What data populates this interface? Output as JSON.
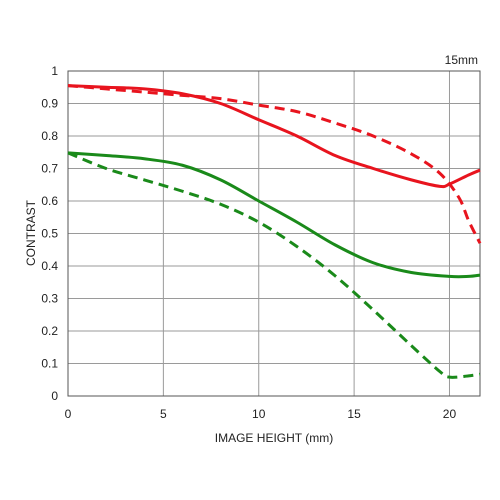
{
  "chart_data": {
    "type": "line",
    "title": "",
    "corner_label": "15mm",
    "xlabel": "IMAGE HEIGHT (mm)",
    "ylabel": "CONTRAST",
    "xlim": [
      0,
      21.6
    ],
    "ylim": [
      0,
      1
    ],
    "x_ticks": [
      0,
      5,
      10,
      15,
      20
    ],
    "y_ticks": [
      0,
      0.1,
      0.2,
      0.3,
      0.4,
      0.5,
      0.6,
      0.7,
      0.8,
      0.9,
      1
    ],
    "grid": true,
    "legend": "none",
    "series": [
      {
        "color": "#e8141e",
        "dash": "solid",
        "points": [
          [
            0,
            0.955
          ],
          [
            2,
            0.95
          ],
          [
            4,
            0.945
          ],
          [
            6,
            0.93
          ],
          [
            8,
            0.9
          ],
          [
            10,
            0.85
          ],
          [
            12,
            0.8
          ],
          [
            14,
            0.74
          ],
          [
            16,
            0.7
          ],
          [
            18,
            0.665
          ],
          [
            19.5,
            0.645
          ],
          [
            20,
            0.652
          ],
          [
            21,
            0.68
          ],
          [
            21.6,
            0.695
          ]
        ]
      },
      {
        "color": "#e8141e",
        "dash": "dashed",
        "points": [
          [
            0,
            0.955
          ],
          [
            2,
            0.945
          ],
          [
            4,
            0.935
          ],
          [
            6,
            0.925
          ],
          [
            8,
            0.915
          ],
          [
            10,
            0.895
          ],
          [
            12,
            0.875
          ],
          [
            14,
            0.84
          ],
          [
            16,
            0.8
          ],
          [
            18,
            0.745
          ],
          [
            19.5,
            0.685
          ],
          [
            20.5,
            0.61
          ],
          [
            21,
            0.54
          ],
          [
            21.6,
            0.47
          ]
        ]
      },
      {
        "color": "#1a8a1a",
        "dash": "solid",
        "points": [
          [
            0,
            0.748
          ],
          [
            2,
            0.74
          ],
          [
            4,
            0.73
          ],
          [
            6,
            0.71
          ],
          [
            8,
            0.665
          ],
          [
            10,
            0.6
          ],
          [
            12,
            0.535
          ],
          [
            14,
            0.465
          ],
          [
            16,
            0.41
          ],
          [
            18,
            0.38
          ],
          [
            20,
            0.368
          ],
          [
            21,
            0.368
          ],
          [
            21.6,
            0.372
          ]
        ]
      },
      {
        "color": "#1a8a1a",
        "dash": "dashed",
        "points": [
          [
            0,
            0.748
          ],
          [
            2,
            0.7
          ],
          [
            4,
            0.665
          ],
          [
            6,
            0.63
          ],
          [
            8,
            0.59
          ],
          [
            10,
            0.535
          ],
          [
            12,
            0.46
          ],
          [
            14,
            0.37
          ],
          [
            16,
            0.265
          ],
          [
            18,
            0.155
          ],
          [
            19.5,
            0.075
          ],
          [
            20,
            0.058
          ],
          [
            21,
            0.062
          ],
          [
            21.6,
            0.067
          ]
        ]
      }
    ]
  }
}
